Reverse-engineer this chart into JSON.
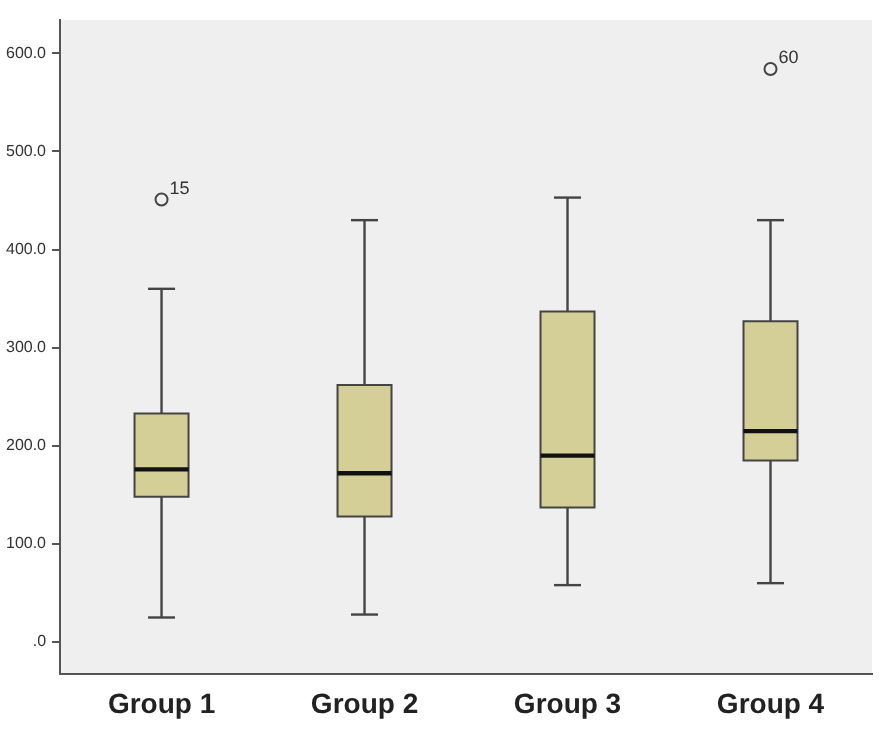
{
  "chart_data": {
    "type": "box",
    "categories": [
      "Group 1",
      "Group 2",
      "Group 3",
      "Group 4"
    ],
    "boxes": [
      {
        "low": 25,
        "q1": 148,
        "median": 176,
        "q3": 233,
        "high": 360,
        "outliers": [
          451
        ]
      },
      {
        "low": 28,
        "q1": 128,
        "median": 172,
        "q3": 262,
        "high": 430
      },
      {
        "low": 58,
        "q1": 137,
        "median": 190,
        "q3": 337,
        "high": 453
      },
      {
        "low": 60,
        "q1": 185,
        "median": 215,
        "q3": 327,
        "high": 430,
        "outliers": [
          584
        ]
      }
    ],
    "color": "#d4cf96",
    "ylim": [
      -33,
      634
    ],
    "yticks": [
      {
        "value": 0,
        "label": ".0"
      },
      {
        "value": 100,
        "label": "100.0"
      },
      {
        "value": 200,
        "label": "200.0"
      },
      {
        "value": 300,
        "label": "300.0"
      },
      {
        "value": 400,
        "label": "400.0"
      },
      {
        "value": 500,
        "label": "500.0"
      },
      {
        "value": 600,
        "label": "600.0"
      }
    ],
    "annotations": [
      "15",
      "60"
    ],
    "grid": false,
    "legend": false
  }
}
